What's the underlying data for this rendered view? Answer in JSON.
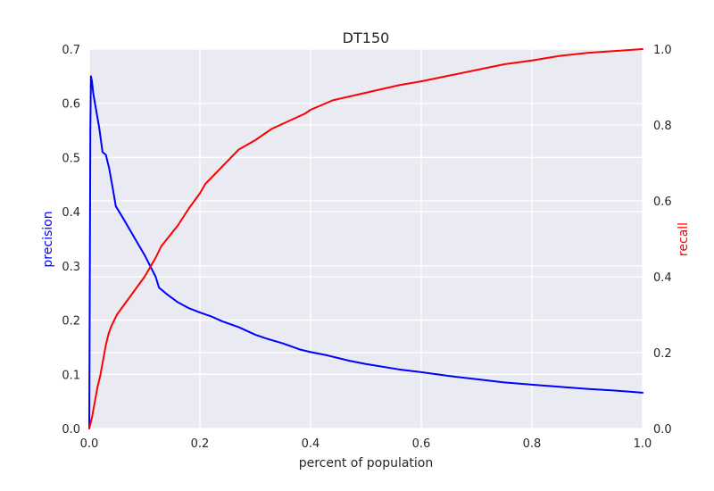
{
  "chart_data": {
    "type": "line",
    "title": "DT150",
    "xlabel": "percent of population",
    "xlim": [
      0.0,
      1.0
    ],
    "xticks": [
      "0.0",
      "0.2",
      "0.4",
      "0.6",
      "0.8",
      "1.0"
    ],
    "grid": true,
    "background": "#eaeaf2",
    "grid_color": "#ffffff",
    "left_axis": {
      "label": "precision",
      "label_color": "#0000ff",
      "ylim": [
        0.0,
        0.7
      ],
      "ticks": [
        "0.0",
        "0.1",
        "0.2",
        "0.3",
        "0.4",
        "0.5",
        "0.6",
        "0.7"
      ]
    },
    "right_axis": {
      "label": "recall",
      "label_color": "#ff0000",
      "ylim": [
        0.0,
        1.0
      ],
      "ticks": [
        "0.0",
        "0.2",
        "0.4",
        "0.6",
        "0.8",
        "1.0"
      ]
    },
    "series": [
      {
        "axis": "left",
        "color": "#0000ff",
        "points": [
          [
            0.0,
            0.0
          ],
          [
            0.002,
            0.55
          ],
          [
            0.003,
            0.65
          ],
          [
            0.005,
            0.64
          ],
          [
            0.007,
            0.62
          ],
          [
            0.012,
            0.59
          ],
          [
            0.018,
            0.555
          ],
          [
            0.024,
            0.51
          ],
          [
            0.03,
            0.505
          ],
          [
            0.036,
            0.48
          ],
          [
            0.043,
            0.44
          ],
          [
            0.048,
            0.41
          ],
          [
            0.06,
            0.39
          ],
          [
            0.08,
            0.355
          ],
          [
            0.1,
            0.32
          ],
          [
            0.12,
            0.28
          ],
          [
            0.126,
            0.26
          ],
          [
            0.14,
            0.248
          ],
          [
            0.16,
            0.233
          ],
          [
            0.18,
            0.222
          ],
          [
            0.2,
            0.214
          ],
          [
            0.22,
            0.207
          ],
          [
            0.24,
            0.198
          ],
          [
            0.27,
            0.187
          ],
          [
            0.3,
            0.173
          ],
          [
            0.32,
            0.166
          ],
          [
            0.35,
            0.157
          ],
          [
            0.38,
            0.146
          ],
          [
            0.4,
            0.141
          ],
          [
            0.43,
            0.135
          ],
          [
            0.47,
            0.125
          ],
          [
            0.5,
            0.119
          ],
          [
            0.56,
            0.109
          ],
          [
            0.6,
            0.104
          ],
          [
            0.65,
            0.097
          ],
          [
            0.7,
            0.091
          ],
          [
            0.75,
            0.085
          ],
          [
            0.8,
            0.081
          ],
          [
            0.85,
            0.077
          ],
          [
            0.9,
            0.073
          ],
          [
            0.95,
            0.07
          ],
          [
            1.0,
            0.066
          ]
        ]
      },
      {
        "axis": "right",
        "color": "#ff0000",
        "points": [
          [
            0.0,
            0.0
          ],
          [
            0.005,
            0.03
          ],
          [
            0.01,
            0.07
          ],
          [
            0.015,
            0.11
          ],
          [
            0.02,
            0.14
          ],
          [
            0.025,
            0.18
          ],
          [
            0.03,
            0.22
          ],
          [
            0.035,
            0.25
          ],
          [
            0.04,
            0.27
          ],
          [
            0.05,
            0.3
          ],
          [
            0.06,
            0.32
          ],
          [
            0.08,
            0.36
          ],
          [
            0.1,
            0.4
          ],
          [
            0.12,
            0.45
          ],
          [
            0.13,
            0.48
          ],
          [
            0.16,
            0.535
          ],
          [
            0.18,
            0.58
          ],
          [
            0.2,
            0.62
          ],
          [
            0.21,
            0.645
          ],
          [
            0.24,
            0.69
          ],
          [
            0.27,
            0.735
          ],
          [
            0.3,
            0.76
          ],
          [
            0.32,
            0.78
          ],
          [
            0.33,
            0.79
          ],
          [
            0.36,
            0.81
          ],
          [
            0.39,
            0.83
          ],
          [
            0.4,
            0.84
          ],
          [
            0.44,
            0.865
          ],
          [
            0.47,
            0.875
          ],
          [
            0.5,
            0.885
          ],
          [
            0.56,
            0.905
          ],
          [
            0.6,
            0.915
          ],
          [
            0.65,
            0.93
          ],
          [
            0.7,
            0.945
          ],
          [
            0.75,
            0.96
          ],
          [
            0.8,
            0.97
          ],
          [
            0.85,
            0.982
          ],
          [
            0.9,
            0.99
          ],
          [
            0.95,
            0.995
          ],
          [
            1.0,
            1.0
          ]
        ]
      }
    ]
  }
}
